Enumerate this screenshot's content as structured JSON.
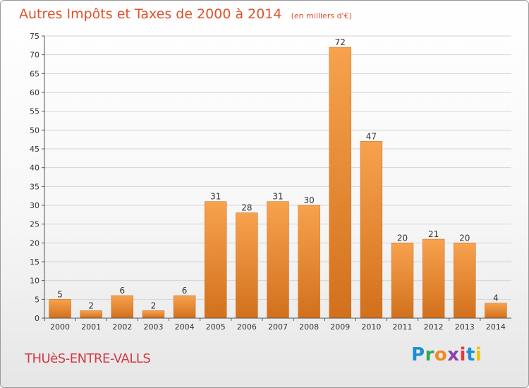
{
  "chart_data": {
    "type": "bar",
    "title": "Autres Impôts et Taxes de 2000 à 2014",
    "unit": "(en milliers d'€)",
    "categories": [
      "2000",
      "2001",
      "2002",
      "2003",
      "2004",
      "2005",
      "2006",
      "2007",
      "2008",
      "2009",
      "2010",
      "2011",
      "2012",
      "2013",
      "2014"
    ],
    "values": [
      5,
      2,
      6,
      2,
      6,
      31,
      28,
      31,
      30,
      72,
      47,
      20,
      21,
      20,
      4
    ],
    "ylim": [
      0,
      75
    ],
    "yticks": [
      0,
      5,
      10,
      15,
      20,
      25,
      30,
      35,
      40,
      45,
      50,
      55,
      60,
      65,
      70,
      75
    ],
    "grid": true,
    "bar_color": "#f08c2a"
  },
  "footer": {
    "commune": "THUèS-ENTRE-VALLS",
    "brand": "Proxiti"
  }
}
